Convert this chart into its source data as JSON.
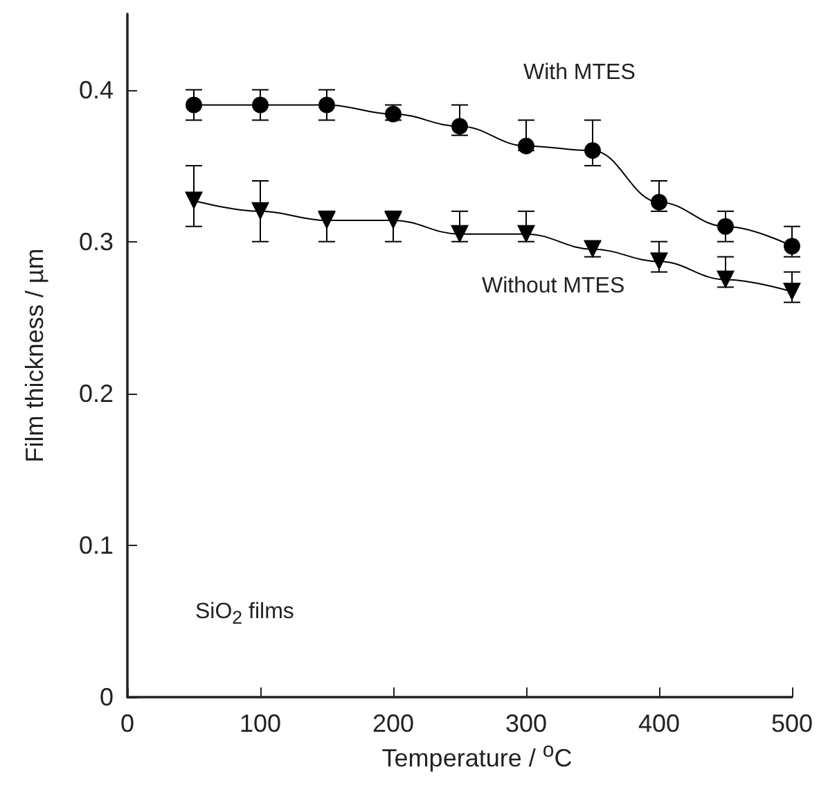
{
  "chart_data": {
    "type": "line",
    "xlabel": "Temperature / $^{o}$C",
    "ylabel": "Film thickness / µm",
    "annotations": [
      "SiO$_{2}$ films"
    ],
    "x": [
      50,
      100,
      150,
      200,
      250,
      300,
      350,
      400,
      450,
      500
    ],
    "series": [
      {
        "name": "With MTES",
        "color": "#000000",
        "marker": "circle",
        "values": [
          0.39,
          0.39,
          0.39,
          0.384,
          0.376,
          0.363,
          0.36,
          0.326,
          0.31,
          0.297
        ],
        "errors": [
          [
            0.38,
            0.4
          ],
          [
            0.38,
            0.4
          ],
          [
            0.38,
            0.4
          ],
          [
            0.38,
            0.39
          ],
          [
            0.37,
            0.39
          ],
          [
            0.36,
            0.38
          ],
          [
            0.35,
            0.38
          ],
          [
            0.32,
            0.34
          ],
          [
            0.3,
            0.32
          ],
          [
            0.29,
            0.31
          ]
        ]
      },
      {
        "name": "Without MTES",
        "color": "#000000",
        "marker": "triangle",
        "values": [
          0.327,
          0.32,
          0.314,
          0.314,
          0.305,
          0.305,
          0.295,
          0.287,
          0.275,
          0.267
        ],
        "errors": [
          [
            0.31,
            0.35
          ],
          [
            0.3,
            0.34
          ],
          [
            0.3,
            0.32
          ],
          [
            0.3,
            0.32
          ],
          [
            0.3,
            0.32
          ],
          [
            0.3,
            0.32
          ],
          [
            0.29,
            0.3
          ],
          [
            0.28,
            0.3
          ],
          [
            0.27,
            0.29
          ],
          [
            0.26,
            0.28
          ]
        ]
      }
    ],
    "xlim": [
      0,
      500
    ],
    "xticks": [
      0,
      100,
      200,
      300,
      400,
      500
    ],
    "ylim": [
      0,
      0.45
    ],
    "yticks": [
      0,
      0.1,
      0.2,
      0.3,
      0.4
    ],
    "grid": false,
    "legend": false,
    "line_style": "solid"
  }
}
